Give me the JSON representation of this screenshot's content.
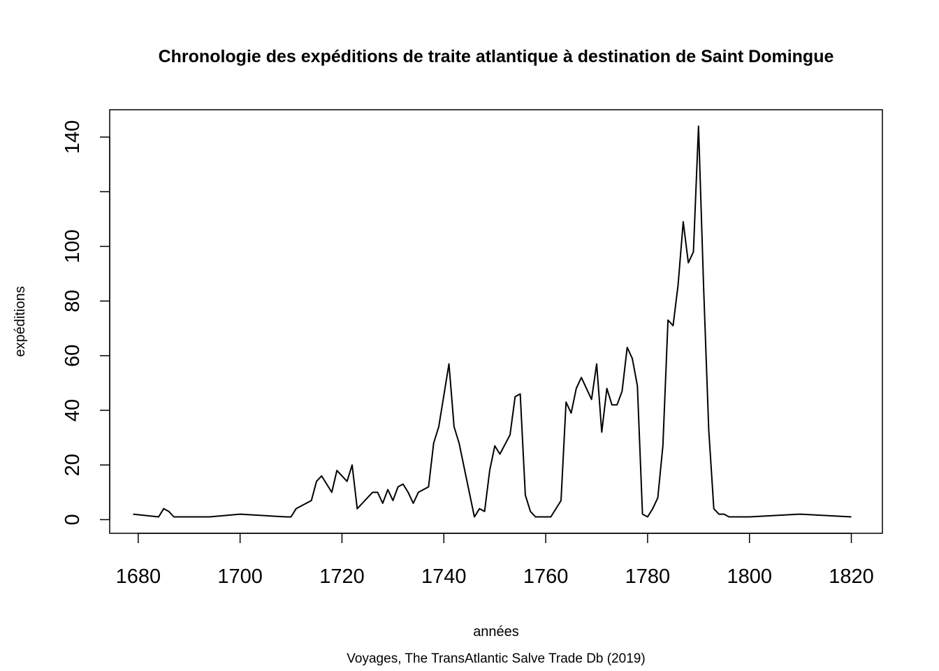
{
  "chart_data": {
    "type": "line",
    "title": "Chronologie des expéditions de traite atlantique à destination de Saint Domingue",
    "xlabel": "années",
    "ylabel": "expéditions",
    "caption": "Voyages, The TransAtlantic Salve Trade Db (2019)",
    "xlim": [
      1674.4,
      1826.1
    ],
    "ylim": [
      -5,
      150
    ],
    "x_ticks": [
      1680,
      1700,
      1720,
      1740,
      1760,
      1780,
      1800,
      1820
    ],
    "y_ticks": [
      0,
      20,
      40,
      60,
      80,
      100,
      120,
      140
    ],
    "y_tick_labels": [
      "0",
      "20",
      "40",
      "60",
      "80",
      "100",
      "",
      "140"
    ],
    "grid": false,
    "series": [
      {
        "x": [
          1679,
          1684,
          1685,
          1686,
          1687,
          1694,
          1700,
          1709,
          1710,
          1711,
          1712,
          1714,
          1715,
          1716,
          1718,
          1719,
          1721,
          1722,
          1723,
          1724,
          1726,
          1727,
          1728,
          1729,
          1730,
          1731,
          1732,
          1733,
          1734,
          1735,
          1737,
          1738,
          1739,
          1741,
          1742,
          1743,
          1746,
          1747,
          1748,
          1749,
          1750,
          1751,
          1753,
          1754,
          1755,
          1756,
          1757,
          1758,
          1761,
          1763,
          1764,
          1765,
          1766,
          1767,
          1769,
          1770,
          1771,
          1772,
          1773,
          1774,
          1775,
          1776,
          1777,
          1778,
          1779,
          1780,
          1781,
          1782,
          1783,
          1784,
          1785,
          1786,
          1787,
          1788,
          1789,
          1790,
          1791,
          1792,
          1793,
          1794,
          1795,
          1796,
          1800,
          1810,
          1820
        ],
        "y": [
          2,
          1,
          4,
          3,
          1,
          1,
          2,
          1,
          1,
          4,
          5,
          7,
          14,
          16,
          10,
          18,
          14,
          20,
          4,
          6,
          10,
          10,
          6,
          11,
          7,
          12,
          13,
          10,
          6,
          10,
          12,
          28,
          34,
          57,
          34,
          28,
          1,
          4,
          3,
          18,
          27,
          24,
          31,
          45,
          46,
          9,
          3,
          1,
          1,
          7,
          43,
          39,
          48,
          52,
          44,
          57,
          32,
          48,
          42,
          42,
          47,
          63,
          59,
          49,
          2,
          1,
          4,
          8,
          27,
          73,
          71,
          86,
          109,
          94,
          98,
          144,
          85,
          33,
          4,
          2,
          2,
          1,
          1,
          2,
          1
        ]
      }
    ]
  }
}
